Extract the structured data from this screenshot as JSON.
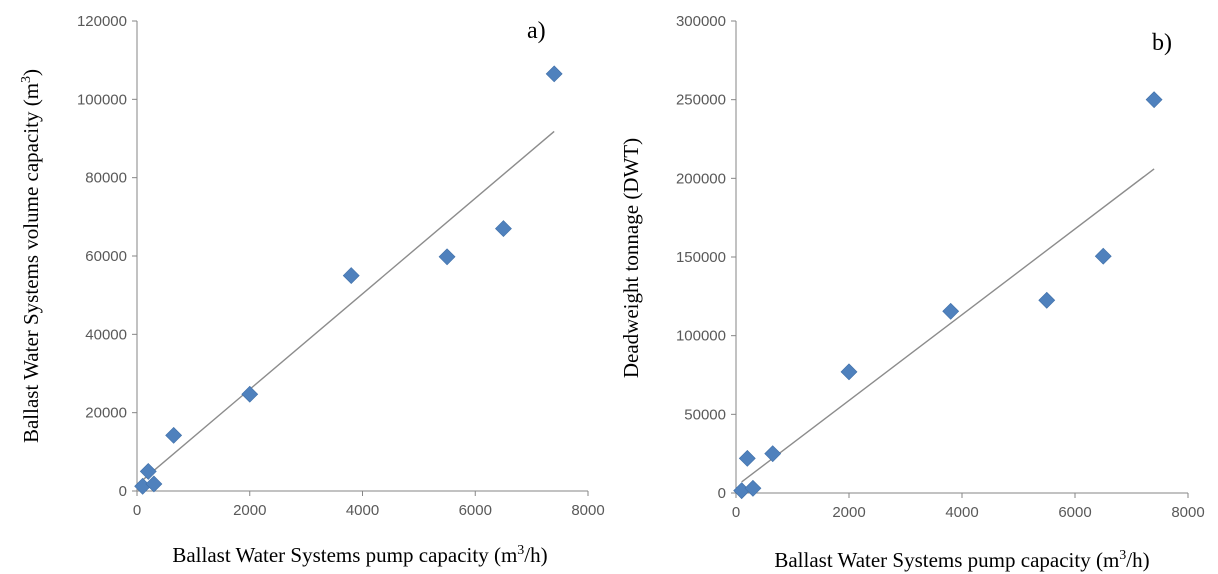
{
  "chart_data": [
    {
      "type": "scatter",
      "panel_label": "a)",
      "x": [
        100,
        200,
        300,
        650,
        2000,
        3800,
        5500,
        6500,
        7400
      ],
      "y": [
        1200,
        5000,
        1800,
        14200,
        24700,
        55000,
        59800,
        67000,
        106500
      ],
      "trendline": {
        "x": [
          100,
          7400
        ],
        "y": [
          2800,
          91800
        ]
      },
      "xlabel_parts": [
        "Ballast Water Systems pump capacity (m",
        "3",
        "/h)"
      ],
      "ylabel_parts": [
        "Ballast Water Systems volume capacity (m",
        "3",
        ")"
      ],
      "xlim": [
        0,
        8000
      ],
      "ylim": [
        0,
        120000
      ],
      "xticks": [
        "0",
        "2000",
        "4000",
        "6000",
        "8000"
      ],
      "yticks": [
        "0",
        "20000",
        "40000",
        "60000",
        "80000",
        "100000",
        "120000"
      ],
      "grid": false,
      "marker_color": "#4f81bd",
      "trend_color": "#8c8c8c"
    },
    {
      "type": "scatter",
      "panel_label": "b)",
      "x": [
        100,
        200,
        300,
        650,
        2000,
        3800,
        5500,
        6500,
        7400
      ],
      "y": [
        1500,
        22000,
        3000,
        25000,
        77000,
        115500,
        122500,
        150500,
        250000
      ],
      "trendline": {
        "x": [
          100,
          7400
        ],
        "y": [
          7000,
          206000
        ]
      },
      "xlabel_parts": [
        "Ballast Water Systems pump capacity (m",
        "3",
        "/h)"
      ],
      "ylabel_parts": [
        "Deadweight tonnage (DWT)"
      ],
      "xlim": [
        0,
        8000
      ],
      "ylim": [
        0,
        300000
      ],
      "xticks": [
        "0",
        "2000",
        "4000",
        "6000",
        "8000"
      ],
      "yticks": [
        "0",
        "50000",
        "100000",
        "150000",
        "200000",
        "250000",
        "300000"
      ],
      "grid": false,
      "marker_color": "#4f81bd",
      "trend_color": "#8c8c8c"
    }
  ]
}
